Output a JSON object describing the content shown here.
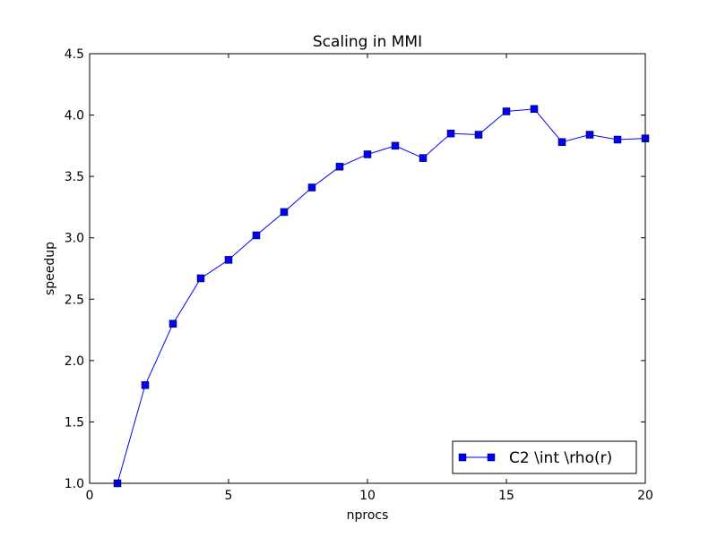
{
  "chart_data": {
    "type": "line",
    "title": "Scaling in MMI",
    "xlabel": "nprocs",
    "ylabel": "speedup",
    "xlim": [
      0,
      20
    ],
    "ylim": [
      1.0,
      4.5
    ],
    "xticks": [
      0,
      5,
      10,
      15,
      20
    ],
    "xtick_labels": [
      "0",
      "5",
      "10",
      "15",
      "20"
    ],
    "yticks": [
      1.0,
      1.5,
      2.0,
      2.5,
      3.0,
      3.5,
      4.0,
      4.5
    ],
    "ytick_labels": [
      "1.0",
      "1.5",
      "2.0",
      "2.5",
      "3.0",
      "3.5",
      "4.0",
      "4.5"
    ],
    "grid": false,
    "legend_position": "lower-right",
    "series": [
      {
        "name": "C2 \\int \\rho(r)",
        "color": "#0000ff",
        "marker": "square",
        "x": [
          1,
          2,
          3,
          4,
          5,
          6,
          7,
          8,
          9,
          10,
          11,
          12,
          13,
          14,
          15,
          16,
          17,
          18,
          19,
          20
        ],
        "y": [
          1.0,
          1.8,
          2.3,
          2.67,
          2.82,
          3.02,
          3.21,
          3.41,
          3.58,
          3.68,
          3.75,
          3.65,
          3.85,
          3.84,
          4.03,
          4.05,
          3.78,
          3.84,
          3.8,
          3.81
        ]
      }
    ]
  }
}
